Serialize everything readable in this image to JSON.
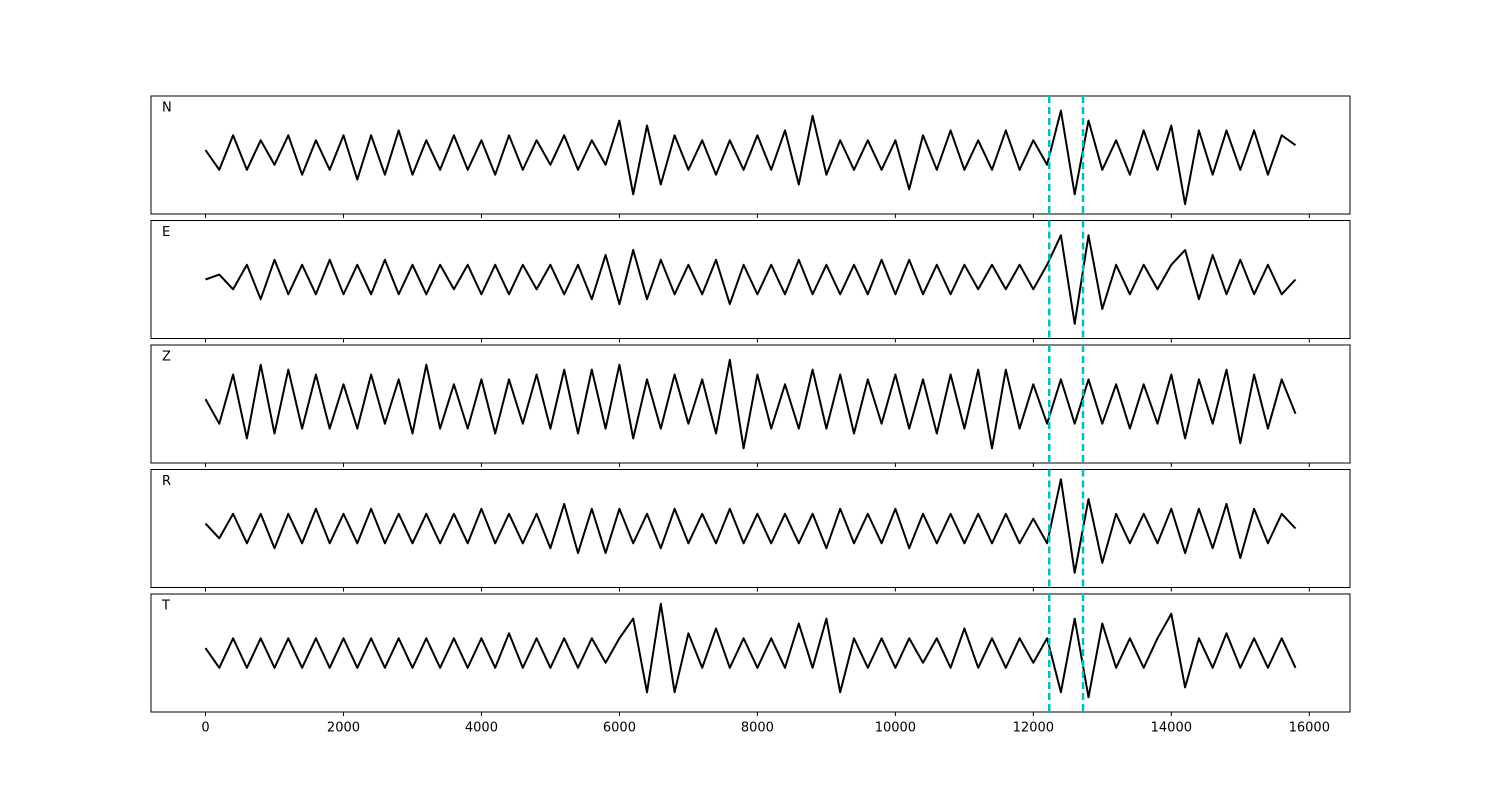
{
  "chart_data": {
    "type": "line",
    "stacked_panels": true,
    "x": [
      0,
      200,
      400,
      600,
      800,
      1000,
      1200,
      1400,
      1600,
      1800,
      2000,
      2200,
      2400,
      2600,
      2800,
      3000,
      3200,
      3400,
      3600,
      3800,
      4000,
      4200,
      4400,
      4600,
      4800,
      5000,
      5200,
      5400,
      5600,
      5800,
      6000,
      6200,
      6400,
      6600,
      6800,
      7000,
      7200,
      7400,
      7600,
      7800,
      8000,
      8200,
      8400,
      8600,
      8800,
      9000,
      9200,
      9400,
      9600,
      9800,
      10000,
      10200,
      10400,
      10600,
      10800,
      11000,
      11200,
      11400,
      11600,
      11800,
      12000,
      12200,
      12400,
      12600,
      12800,
      13000,
      13200,
      13400,
      13600,
      13800,
      14000,
      14200,
      14400,
      14600,
      14800,
      15000,
      15200,
      15400,
      15600,
      15800
    ],
    "xlim": [
      -790,
      16590
    ],
    "xticks": [
      0,
      2000,
      4000,
      6000,
      8000,
      10000,
      12000,
      14000,
      16000
    ],
    "ylim": [
      -1.2,
      1.2
    ],
    "vlines": [
      12230,
      12720
    ],
    "vline_color": "#00bfbf",
    "series": [
      {
        "name": "N",
        "color": "#000000",
        "values": [
          0.1,
          -0.3,
          0.4,
          -0.3,
          0.3,
          -0.2,
          0.4,
          -0.4,
          0.3,
          -0.3,
          0.4,
          -0.5,
          0.4,
          -0.4,
          0.5,
          -0.4,
          0.3,
          -0.3,
          0.4,
          -0.3,
          0.3,
          -0.4,
          0.4,
          -0.3,
          0.3,
          -0.2,
          0.4,
          -0.3,
          0.3,
          -0.2,
          0.7,
          -0.8,
          0.6,
          -0.6,
          0.4,
          -0.3,
          0.3,
          -0.4,
          0.3,
          -0.3,
          0.4,
          -0.3,
          0.5,
          -0.6,
          0.8,
          -0.4,
          0.3,
          -0.3,
          0.3,
          -0.3,
          0.3,
          -0.7,
          0.4,
          -0.3,
          0.5,
          -0.3,
          0.3,
          -0.3,
          0.5,
          -0.3,
          0.3,
          -0.2,
          0.9,
          -0.8,
          0.7,
          -0.3,
          0.3,
          -0.4,
          0.5,
          -0.3,
          0.6,
          -1.0,
          0.5,
          -0.4,
          0.5,
          -0.3,
          0.5,
          -0.4,
          0.4,
          0.2
        ]
      },
      {
        "name": "E",
        "color": "#000000",
        "values": [
          0.0,
          0.1,
          -0.2,
          0.3,
          -0.4,
          0.4,
          -0.3,
          0.3,
          -0.3,
          0.4,
          -0.3,
          0.3,
          -0.3,
          0.4,
          -0.3,
          0.3,
          -0.3,
          0.3,
          -0.2,
          0.3,
          -0.3,
          0.3,
          -0.3,
          0.3,
          -0.2,
          0.3,
          -0.3,
          0.3,
          -0.4,
          0.5,
          -0.5,
          0.6,
          -0.4,
          0.4,
          -0.3,
          0.3,
          -0.3,
          0.4,
          -0.5,
          0.3,
          -0.3,
          0.3,
          -0.3,
          0.4,
          -0.3,
          0.3,
          -0.3,
          0.3,
          -0.3,
          0.4,
          -0.3,
          0.4,
          -0.3,
          0.3,
          -0.3,
          0.3,
          -0.2,
          0.3,
          -0.2,
          0.3,
          -0.2,
          0.3,
          0.9,
          -0.9,
          0.9,
          -0.6,
          0.3,
          -0.3,
          0.3,
          -0.2,
          0.3,
          0.6,
          -0.4,
          0.5,
          -0.3,
          0.4,
          -0.3,
          0.3,
          -0.3,
          0.0
        ]
      },
      {
        "name": "Z",
        "color": "#000000",
        "values": [
          0.1,
          -0.4,
          0.6,
          -0.7,
          0.8,
          -0.6,
          0.7,
          -0.5,
          0.6,
          -0.5,
          0.4,
          -0.5,
          0.6,
          -0.4,
          0.5,
          -0.6,
          0.8,
          -0.5,
          0.4,
          -0.5,
          0.5,
          -0.6,
          0.5,
          -0.4,
          0.6,
          -0.5,
          0.7,
          -0.6,
          0.7,
          -0.5,
          0.8,
          -0.7,
          0.5,
          -0.5,
          0.6,
          -0.4,
          0.5,
          -0.6,
          0.9,
          -0.9,
          0.6,
          -0.5,
          0.4,
          -0.5,
          0.7,
          -0.5,
          0.6,
          -0.6,
          0.5,
          -0.4,
          0.6,
          -0.5,
          0.5,
          -0.6,
          0.6,
          -0.5,
          0.7,
          -0.9,
          0.7,
          -0.5,
          0.4,
          -0.4,
          0.5,
          -0.4,
          0.5,
          -0.4,
          0.4,
          -0.5,
          0.4,
          -0.4,
          0.6,
          -0.7,
          0.5,
          -0.4,
          0.7,
          -0.8,
          0.6,
          -0.5,
          0.5,
          -0.2
        ]
      },
      {
        "name": "R",
        "color": "#000000",
        "values": [
          0.1,
          -0.2,
          0.3,
          -0.3,
          0.3,
          -0.4,
          0.3,
          -0.3,
          0.4,
          -0.3,
          0.3,
          -0.3,
          0.4,
          -0.3,
          0.3,
          -0.3,
          0.3,
          -0.3,
          0.3,
          -0.3,
          0.4,
          -0.3,
          0.3,
          -0.3,
          0.3,
          -0.4,
          0.5,
          -0.5,
          0.4,
          -0.5,
          0.4,
          -0.3,
          0.3,
          -0.4,
          0.4,
          -0.3,
          0.3,
          -0.3,
          0.4,
          -0.3,
          0.3,
          -0.3,
          0.3,
          -0.3,
          0.3,
          -0.4,
          0.4,
          -0.3,
          0.3,
          -0.3,
          0.4,
          -0.4,
          0.3,
          -0.3,
          0.3,
          -0.3,
          0.3,
          -0.3,
          0.3,
          -0.3,
          0.2,
          -0.3,
          1.0,
          -0.9,
          0.6,
          -0.7,
          0.3,
          -0.3,
          0.3,
          -0.3,
          0.4,
          -0.5,
          0.4,
          -0.4,
          0.5,
          -0.6,
          0.4,
          -0.3,
          0.3,
          0.0
        ]
      },
      {
        "name": "T",
        "color": "#000000",
        "values": [
          0.1,
          -0.3,
          0.3,
          -0.3,
          0.3,
          -0.3,
          0.3,
          -0.3,
          0.3,
          -0.3,
          0.3,
          -0.3,
          0.3,
          -0.3,
          0.3,
          -0.3,
          0.3,
          -0.3,
          0.3,
          -0.3,
          0.3,
          -0.3,
          0.4,
          -0.3,
          0.3,
          -0.3,
          0.3,
          -0.3,
          0.3,
          -0.2,
          0.3,
          0.7,
          -0.8,
          1.0,
          -0.8,
          0.4,
          -0.3,
          0.5,
          -0.3,
          0.3,
          -0.3,
          0.3,
          -0.3,
          0.6,
          -0.3,
          0.7,
          -0.8,
          0.3,
          -0.3,
          0.3,
          -0.3,
          0.3,
          -0.2,
          0.3,
          -0.3,
          0.5,
          -0.3,
          0.3,
          -0.3,
          0.3,
          -0.2,
          0.3,
          -0.8,
          0.7,
          -0.9,
          0.6,
          -0.3,
          0.3,
          -0.3,
          0.3,
          0.8,
          -0.7,
          0.3,
          -0.3,
          0.4,
          -0.3,
          0.3,
          -0.3,
          0.3,
          -0.3
        ]
      }
    ]
  }
}
